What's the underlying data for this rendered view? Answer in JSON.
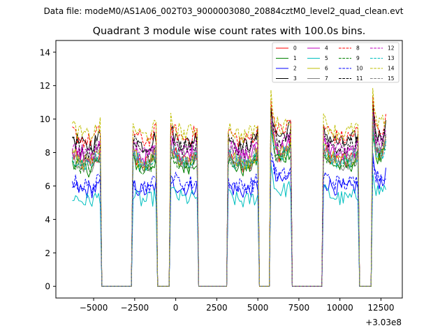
{
  "chart_data": {
    "type": "line",
    "suptitle": "Data file: modeM0/AS1A06_002T03_9000003080_20884cztM0_level2_quad_clean.evt",
    "title": "Quadrant 3 module wise count rates with 100.0s bins.",
    "xlabel": "",
    "ylabel": "",
    "x_offset_label": "+3.03e8",
    "xlim": [
      -7300,
      13800
    ],
    "ylim": [
      -0.7,
      14.7
    ],
    "xticks": [
      -5000,
      -2500,
      0,
      2500,
      5000,
      7500,
      10000,
      12500
    ],
    "xtick_labels": [
      "−5000",
      "−2500",
      "0",
      "2500",
      "5000",
      "7500",
      "10000",
      "12500"
    ],
    "yticks": [
      0,
      2,
      4,
      6,
      8,
      10,
      12,
      14
    ],
    "ytick_labels": [
      "0",
      "2",
      "4",
      "6",
      "8",
      "10",
      "12",
      "14"
    ],
    "legend_position": "top-right",
    "legend_columns": 4,
    "bin_width_s": 100,
    "on_intervals": [
      [
        -6300,
        -4600
      ],
      [
        -2600,
        -1200
      ],
      [
        -300,
        1300
      ],
      [
        3200,
        5000
      ],
      [
        5800,
        7000
      ],
      [
        9000,
        11100
      ],
      [
        12000,
        12800
      ]
    ],
    "series": [
      {
        "name": "0",
        "color": "#ff0000",
        "dash": "solid",
        "level": 7.9
      },
      {
        "name": "1",
        "color": "#008000",
        "dash": "solid",
        "level": 7.6
      },
      {
        "name": "2",
        "color": "#0000ff",
        "dash": "solid",
        "level": 6.0
      },
      {
        "name": "3",
        "color": "#000000",
        "dash": "solid",
        "level": 9.0
      },
      {
        "name": "4",
        "color": "#bf00bf",
        "dash": "solid",
        "level": 8.3
      },
      {
        "name": "5",
        "color": "#00bfbf",
        "dash": "solid",
        "level": 5.4
      },
      {
        "name": "6",
        "color": "#bfbf00",
        "dash": "solid",
        "level": 8.0
      },
      {
        "name": "7",
        "color": "#808080",
        "dash": "solid",
        "level": 7.8
      },
      {
        "name": "8",
        "color": "#ff0000",
        "dash": "dashed",
        "level": 9.3
      },
      {
        "name": "9",
        "color": "#008000",
        "dash": "dashed",
        "level": 7.7
      },
      {
        "name": "10",
        "color": "#0000ff",
        "dash": "dashed",
        "level": 6.3
      },
      {
        "name": "11",
        "color": "#000000",
        "dash": "dashed",
        "level": 8.7
      },
      {
        "name": "12",
        "color": "#bf00bf",
        "dash": "dashed",
        "level": 8.5
      },
      {
        "name": "13",
        "color": "#00bfbf",
        "dash": "dashed",
        "level": 7.9
      },
      {
        "name": "14",
        "color": "#bfbf00",
        "dash": "dashed",
        "level": 9.6
      },
      {
        "name": "15",
        "color": "#808080",
        "dash": "dashed",
        "level": 8.1
      }
    ]
  }
}
